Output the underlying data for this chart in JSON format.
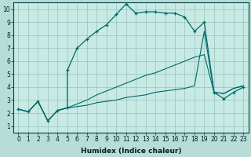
{
  "xlabel": "Humidex (Indice chaleur)",
  "bg_color": "#b8ddd8",
  "plot_bg_color": "#c8eae4",
  "line_color": "#006868",
  "grid_color": "#a0c8c0",
  "xlim": [
    -0.5,
    23.5
  ],
  "ylim": [
    0.5,
    10.5
  ],
  "xticks": [
    0,
    1,
    2,
    3,
    4,
    5,
    6,
    7,
    8,
    9,
    10,
    11,
    12,
    13,
    14,
    15,
    16,
    17,
    18,
    19,
    20,
    21,
    22,
    23
  ],
  "yticks": [
    1,
    2,
    3,
    4,
    5,
    6,
    7,
    8,
    9,
    10
  ],
  "line1_x": [
    0,
    1,
    2,
    3,
    4,
    5,
    5,
    6,
    7,
    8,
    9,
    10,
    11,
    12,
    13,
    14,
    15,
    16,
    17,
    18,
    19,
    20,
    21,
    22,
    23
  ],
  "line1_y": [
    2.3,
    2.1,
    2.9,
    1.4,
    2.2,
    2.4,
    5.3,
    7.0,
    7.7,
    8.3,
    8.8,
    9.6,
    10.4,
    9.7,
    9.8,
    9.8,
    9.7,
    9.7,
    9.4,
    8.3,
    9.0,
    3.6,
    3.1,
    3.6,
    4.0
  ],
  "line2_x": [
    0,
    1,
    2,
    3,
    4,
    5,
    6,
    7,
    8,
    9,
    10,
    11,
    12,
    13,
    14,
    15,
    16,
    17,
    18,
    19,
    20,
    21,
    22,
    23
  ],
  "line2_y": [
    2.3,
    2.1,
    2.9,
    1.4,
    2.2,
    2.4,
    2.7,
    3.0,
    3.4,
    3.7,
    4.0,
    4.3,
    4.6,
    4.9,
    5.1,
    5.4,
    5.7,
    6.0,
    6.3,
    6.5,
    3.6,
    3.5,
    3.9,
    4.1
  ],
  "line3_x": [
    0,
    1,
    2,
    3,
    4,
    5,
    6,
    7,
    8,
    9,
    10,
    11,
    12,
    13,
    14,
    15,
    16,
    17,
    18,
    19,
    20,
    21,
    22,
    23
  ],
  "line3_y": [
    2.3,
    2.1,
    2.9,
    1.4,
    2.2,
    2.4,
    2.5,
    2.6,
    2.8,
    2.9,
    3.0,
    3.2,
    3.3,
    3.4,
    3.6,
    3.7,
    3.8,
    3.9,
    4.1,
    8.3,
    3.6,
    3.5,
    3.9,
    4.1
  ]
}
